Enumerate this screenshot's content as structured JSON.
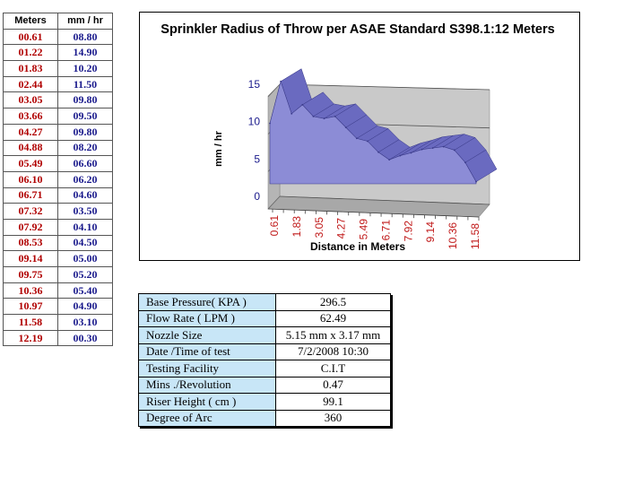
{
  "left_table": {
    "headers": [
      "Meters",
      "mm / hr"
    ],
    "rows": [
      [
        "00.61",
        "08.80"
      ],
      [
        "01.22",
        "14.90"
      ],
      [
        "01.83",
        "10.20"
      ],
      [
        "02.44",
        "11.50"
      ],
      [
        "03.05",
        "09.80"
      ],
      [
        "03.66",
        "09.50"
      ],
      [
        "04.27",
        "09.80"
      ],
      [
        "04.88",
        "08.20"
      ],
      [
        "05.49",
        "06.60"
      ],
      [
        "06.10",
        "06.20"
      ],
      [
        "06.71",
        "04.60"
      ],
      [
        "07.32",
        "03.50"
      ],
      [
        "07.92",
        "04.10"
      ],
      [
        "08.53",
        "04.50"
      ],
      [
        "09.14",
        "05.00"
      ],
      [
        "09.75",
        "05.20"
      ],
      [
        "10.36",
        "05.40"
      ],
      [
        "10.97",
        "04.90"
      ],
      [
        "11.58",
        "03.10"
      ],
      [
        "12.19",
        "00.30"
      ]
    ]
  },
  "chart_data": {
    "type": "area",
    "title": "Sprinkler Radius of Throw per ASAE  Standard S398.1:12 Meters",
    "xlabel": "Distance in Meters",
    "ylabel": "mm / hr",
    "x": [
      "0.61",
      "1.22",
      "1.83",
      "2.44",
      "3.05",
      "3.66",
      "4.27",
      "4.88",
      "5.49",
      "6.10",
      "6.71",
      "7.32",
      "7.92",
      "8.53",
      "9.14",
      "9.75",
      "10.36",
      "10.97",
      "11.58",
      "12.19"
    ],
    "x_tick_labels": [
      "0.61",
      "1.83",
      "3.05",
      "4.27",
      "5.49",
      "6.71",
      "7.92",
      "9.14",
      "10.36",
      "11.58"
    ],
    "values": [
      8.8,
      14.9,
      10.2,
      11.5,
      9.8,
      9.5,
      9.8,
      8.2,
      6.6,
      6.2,
      4.6,
      3.5,
      4.1,
      4.5,
      5.0,
      5.2,
      5.4,
      4.9,
      3.1,
      0.3
    ],
    "y_ticks": [
      0,
      5,
      10,
      15
    ],
    "ylim": [
      0,
      15
    ],
    "grid": true,
    "colors": {
      "area": "#8c8cd6",
      "area_top": "#6a6ac0",
      "wall": "#c9c9c9",
      "floor": "#a8a8a8",
      "tick_labels": "#c01818",
      "y_tick_labels": "#1a1a8c"
    }
  },
  "info_table": [
    {
      "label": "Base Pressure( KPA  )",
      "value": "296.5"
    },
    {
      "label": "Flow Rate ( LPM )",
      "value": "62.49"
    },
    {
      "label": "Nozzle Size",
      "value": "5.15 mm x 3.17 mm"
    },
    {
      "label": "Date /Time of test",
      "value": "7/2/2008 10:30"
    },
    {
      "label": "Testing Facility",
      "value": "C.I.T"
    },
    {
      "label": "Mins ./Revolution",
      "value": "0.47"
    },
    {
      "label": "Riser Height ( cm )",
      "value": "99.1"
    },
    {
      "label": "Degree of Arc",
      "value": "360"
    }
  ]
}
